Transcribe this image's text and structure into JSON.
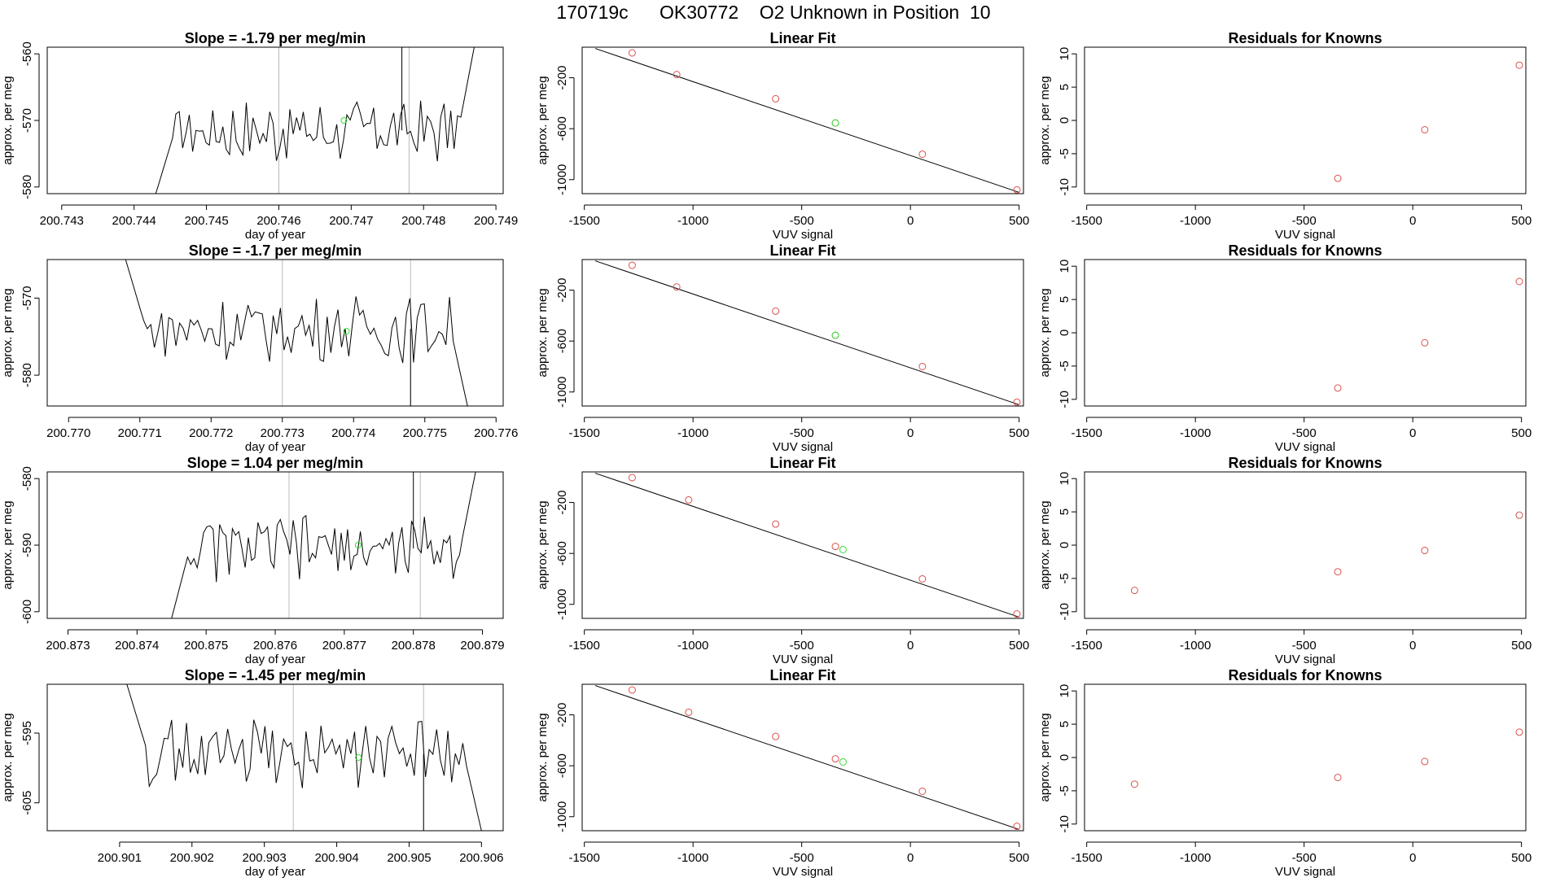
{
  "page_title": "170719c      OK30772    O2 Unknown in Position  10",
  "chart_data": [
    {
      "type": "line",
      "title": "Slope =  -1.79  per meg/min",
      "xlabel": "day of year",
      "ylabel": "approx. per meg",
      "xlim": [
        200.7428,
        200.7491
      ],
      "ylim": [
        -581,
        -559
      ],
      "xticks": [
        200.743,
        200.744,
        200.745,
        200.746,
        200.747,
        200.748,
        200.749
      ],
      "xtick_labels": [
        "200.743",
        "200.744",
        "200.745",
        "200.746",
        "200.747",
        "200.748",
        "200.749"
      ],
      "yticks": [
        -580,
        -570,
        -560
      ],
      "ytick_labels": [
        "-580",
        "-570",
        "-560"
      ],
      "x_start": 200.7443,
      "x_end": 200.7487,
      "series_start": -581,
      "series_level": -571.5,
      "series_end": -559,
      "vlines": [
        200.746,
        200.7478
      ],
      "highlight": {
        "x": 200.7469,
        "y": -570
      },
      "spike": {
        "x": 200.7477,
        "y": -559
      }
    },
    {
      "type": "scatter",
      "title": "Linear Fit",
      "xlabel": "VUV signal",
      "ylabel": "approx. per meg",
      "xlim": [
        -1510,
        520
      ],
      "ylim": [
        -1110,
        40
      ],
      "xticks": [
        -1500,
        -1000,
        -500,
        0,
        500
      ],
      "xtick_labels": [
        "-1500",
        "-1000",
        "-500",
        "0",
        "500"
      ],
      "yticks": [
        -1000,
        -600,
        -200
      ],
      "ytick_labels": [
        "-1000",
        "-600",
        "-200"
      ],
      "fit_line": {
        "x": [
          -1450,
          500
        ],
        "y": [
          30,
          -1100
        ]
      },
      "points_x": [
        -1280,
        -1075,
        -620,
        -345,
        55,
        490
      ],
      "points_y": [
        -5,
        -175,
        -365,
        -555,
        -800,
        -1080
      ],
      "unknown_x": [
        -345
      ],
      "unknown_y": [
        -555
      ]
    },
    {
      "type": "scatter",
      "title": "Residuals for Knowns",
      "xlabel": "VUV signal",
      "ylabel": "approx. per meg",
      "xlim": [
        -1510,
        520
      ],
      "ylim": [
        -11,
        11
      ],
      "xticks": [
        -1500,
        -1000,
        -500,
        0,
        500
      ],
      "xtick_labels": [
        "-1500",
        "-1000",
        "-500",
        "0",
        "500"
      ],
      "yticks": [
        -10,
        -5,
        0,
        5,
        10
      ],
      "ytick_labels": [
        "-10",
        "-5",
        "0",
        "5",
        "10"
      ],
      "points_x": [
        -345,
        55,
        490
      ],
      "points_y": [
        -8.7,
        -1.4,
        8.3
      ]
    },
    {
      "type": "line",
      "title": "Slope =  -1.7  per meg/min",
      "xlabel": "day of year",
      "ylabel": "approx. per meg",
      "xlim": [
        200.7697,
        200.7761
      ],
      "ylim": [
        -584,
        -565
      ],
      "xticks": [
        200.77,
        200.771,
        200.772,
        200.773,
        200.774,
        200.775,
        200.776
      ],
      "xtick_labels": [
        "200.770",
        "200.771",
        "200.772",
        "200.773",
        "200.774",
        "200.775",
        "200.776"
      ],
      "yticks": [
        -580,
        -570
      ],
      "ytick_labels": [
        "-580",
        "-570"
      ],
      "x_start": 200.7708,
      "x_end": 200.7756,
      "series_start": -565,
      "series_level": -574,
      "series_end": -584,
      "vlines": [
        200.773,
        200.7748
      ],
      "highlight": {
        "x": 200.7739,
        "y": -574.3
      },
      "spike": {
        "x": 200.7748,
        "y": -584
      }
    },
    {
      "type": "scatter",
      "title": "Linear Fit",
      "xlabel": "VUV signal",
      "ylabel": "approx. per meg",
      "xlim": [
        -1510,
        520
      ],
      "ylim": [
        -1110,
        40
      ],
      "xticks": [
        -1500,
        -1000,
        -500,
        0,
        500
      ],
      "xtick_labels": [
        "-1500",
        "-1000",
        "-500",
        "0",
        "500"
      ],
      "yticks": [
        -1000,
        -600,
        -200
      ],
      "ytick_labels": [
        "-1000",
        "-600",
        "-200"
      ],
      "fit_line": {
        "x": [
          -1450,
          500
        ],
        "y": [
          30,
          -1100
        ]
      },
      "points_x": [
        -1280,
        -1075,
        -620,
        -345,
        55,
        490
      ],
      "points_y": [
        -5,
        -175,
        -365,
        -555,
        -800,
        -1080
      ],
      "unknown_x": [
        -345
      ],
      "unknown_y": [
        -555
      ]
    },
    {
      "type": "scatter",
      "title": "Residuals for Knowns",
      "xlabel": "VUV signal",
      "ylabel": "approx. per meg",
      "xlim": [
        -1510,
        520
      ],
      "ylim": [
        -11,
        11
      ],
      "xticks": [
        -1500,
        -1000,
        -500,
        0,
        500
      ],
      "xtick_labels": [
        "-1500",
        "-1000",
        "-500",
        "0",
        "500"
      ],
      "yticks": [
        -10,
        -5,
        0,
        5,
        10
      ],
      "ytick_labels": [
        "-10",
        "-5",
        "0",
        "5",
        "10"
      ],
      "points_x": [
        -345,
        55,
        490
      ],
      "points_y": [
        -8.3,
        -1.5,
        7.7
      ]
    },
    {
      "type": "line",
      "title": "Slope =  1.04  per meg/min",
      "xlabel": "day of year",
      "ylabel": "approx. per meg",
      "xlim": [
        200.8727,
        200.8793
      ],
      "ylim": [
        -601,
        -579
      ],
      "xticks": [
        200.873,
        200.874,
        200.875,
        200.876,
        200.877,
        200.878,
        200.879
      ],
      "xtick_labels": [
        "200.873",
        "200.874",
        "200.875",
        "200.876",
        "200.877",
        "200.878",
        "200.879"
      ],
      "yticks": [
        -600,
        -590,
        -580
      ],
      "ytick_labels": [
        "-600",
        "-590",
        "-580"
      ],
      "x_start": 200.8745,
      "x_end": 200.8789,
      "series_start": -601,
      "series_level": -590.5,
      "series_end": -579,
      "vlines": [
        200.8762,
        200.8781
      ],
      "highlight": {
        "x": 200.8772,
        "y": -590
      },
      "spike": {
        "x": 200.878,
        "y": -579
      }
    },
    {
      "type": "scatter",
      "title": "Linear Fit",
      "xlabel": "VUV signal",
      "ylabel": "approx. per meg",
      "xlim": [
        -1510,
        520
      ],
      "ylim": [
        -1110,
        40
      ],
      "xticks": [
        -1500,
        -1000,
        -500,
        0,
        500
      ],
      "xtick_labels": [
        "-1500",
        "-1000",
        "-500",
        "0",
        "500"
      ],
      "yticks": [
        -1000,
        -600,
        -200
      ],
      "ytick_labels": [
        "-1000",
        "-600",
        "-200"
      ],
      "fit_line": {
        "x": [
          -1450,
          500
        ],
        "y": [
          30,
          -1100
        ]
      },
      "points_x": [
        -1280,
        -1020,
        -620,
        -345,
        55,
        490
      ],
      "points_y": [
        -5,
        -180,
        -370,
        -545,
        -800,
        -1075
      ],
      "unknown_x": [
        -310
      ],
      "unknown_y": [
        -570
      ]
    },
    {
      "type": "scatter",
      "title": "Residuals for Knowns",
      "xlabel": "VUV signal",
      "ylabel": "approx. per meg",
      "xlim": [
        -1510,
        520
      ],
      "ylim": [
        -11,
        11
      ],
      "xticks": [
        -1500,
        -1000,
        -500,
        0,
        500
      ],
      "xtick_labels": [
        "-1500",
        "-1000",
        "-500",
        "0",
        "500"
      ],
      "yticks": [
        -10,
        -5,
        0,
        5,
        10
      ],
      "ytick_labels": [
        "-10",
        "-5",
        "0",
        "5",
        "10"
      ],
      "points_x": [
        -1280,
        -345,
        55,
        490
      ],
      "points_y": [
        -6.8,
        -4.0,
        -0.8,
        4.5
      ]
    },
    {
      "type": "line",
      "title": "Slope =  -1.45  per meg/min",
      "xlabel": "day of year",
      "ylabel": "approx. per meg",
      "xlim": [
        200.9,
        200.9063
      ],
      "ylim": [
        -609,
        -588
      ],
      "xticks": [
        200.901,
        200.902,
        200.903,
        200.904,
        200.905,
        200.906
      ],
      "xtick_labels": [
        "200.901",
        "200.902",
        "200.903",
        "200.904",
        "200.905",
        "200.906"
      ],
      "yticks": [
        -605,
        -595
      ],
      "ytick_labels": [
        "-605",
        "-595"
      ],
      "x_start": 200.9011,
      "x_end": 200.906,
      "series_start": -588,
      "series_level": -598,
      "series_end": -609,
      "vlines": [
        200.9034,
        200.9052
      ],
      "highlight": {
        "x": 200.9043,
        "y": -598.5
      },
      "spike": {
        "x": 200.9052,
        "y": -609
      }
    },
    {
      "type": "scatter",
      "title": "Linear Fit",
      "xlabel": "VUV signal",
      "ylabel": "approx. per meg",
      "xlim": [
        -1510,
        520
      ],
      "ylim": [
        -1110,
        40
      ],
      "xticks": [
        -1500,
        -1000,
        -500,
        0,
        500
      ],
      "xtick_labels": [
        "-1500",
        "-1000",
        "-500",
        "0",
        "500"
      ],
      "yticks": [
        -1000,
        -600,
        -200
      ],
      "ytick_labels": [
        "-1000",
        "-600",
        "-200"
      ],
      "fit_line": {
        "x": [
          -1450,
          500
        ],
        "y": [
          30,
          -1100
        ]
      },
      "points_x": [
        -1280,
        -1020,
        -620,
        -345,
        55,
        490
      ],
      "points_y": [
        -5,
        -180,
        -370,
        -545,
        -800,
        -1075
      ],
      "unknown_x": [
        -310
      ],
      "unknown_y": [
        -570
      ]
    },
    {
      "type": "scatter",
      "title": "Residuals for Knowns",
      "xlabel": "VUV signal",
      "ylabel": "approx. per meg",
      "xlim": [
        -1510,
        520
      ],
      "ylim": [
        -11,
        11
      ],
      "xticks": [
        -1500,
        -1000,
        -500,
        0,
        500
      ],
      "xtick_labels": [
        "-1500",
        "-1000",
        "-500",
        "0",
        "500"
      ],
      "yticks": [
        -10,
        -5,
        0,
        5,
        10
      ],
      "ytick_labels": [
        "-10",
        "-5",
        "0",
        "5",
        "10"
      ],
      "points_x": [
        -1280,
        -345,
        55,
        490
      ],
      "points_y": [
        -4.0,
        -3.0,
        -0.6,
        3.8
      ]
    }
  ],
  "colors": {
    "known_point": "#d9534f",
    "unknown_point": "#33dd33",
    "series": "#000000",
    "vline": "#bbbbbb",
    "axis": "#000000"
  }
}
